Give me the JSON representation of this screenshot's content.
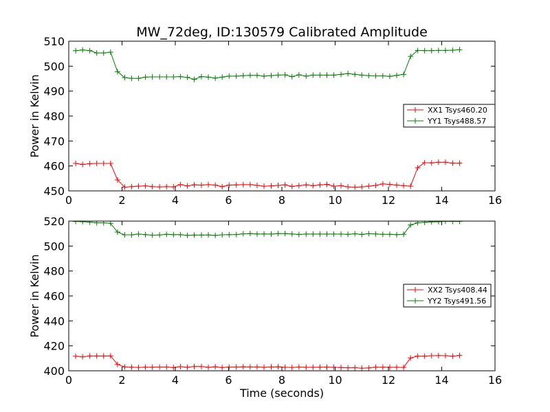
{
  "figure": {
    "title": "MW_72deg, ID:130579 Calibrated Amplitude",
    "xlabel": "Time (seconds)"
  },
  "chart_data": [
    {
      "type": "line",
      "title": "MW_72deg, ID:130579 Calibrated Amplitude",
      "xlabel": "",
      "ylabel": "Power in Kelvin",
      "xlim": [
        0,
        16
      ],
      "ylim": [
        450,
        510
      ],
      "xticks": [
        "0",
        "2",
        "4",
        "6",
        "8",
        "10",
        "12",
        "14",
        "16"
      ],
      "yticks": [
        "450",
        "460",
        "470",
        "480",
        "490",
        "500",
        "510"
      ],
      "grid": false,
      "legend_position": "right",
      "x": [
        0.26,
        0.52,
        0.79,
        1.05,
        1.31,
        1.57,
        1.83,
        2.1,
        2.36,
        2.62,
        2.88,
        3.14,
        3.41,
        3.67,
        3.93,
        4.19,
        4.45,
        4.71,
        4.98,
        5.24,
        5.5,
        5.76,
        6.02,
        6.29,
        6.55,
        6.81,
        7.07,
        7.33,
        7.6,
        7.86,
        8.12,
        8.38,
        8.64,
        8.91,
        9.17,
        9.43,
        9.69,
        9.95,
        10.22,
        10.48,
        10.74,
        11.0,
        11.26,
        11.52,
        11.79,
        12.05,
        12.31,
        12.57,
        12.83,
        13.1,
        13.36,
        13.62,
        13.88,
        14.14,
        14.41,
        14.67
      ],
      "series": [
        {
          "name": "XX1 Tsys460.20",
          "color": "#ff0000",
          "values": [
            461.0,
            460.6,
            460.9,
            461.0,
            461.0,
            461.0,
            454.4,
            451.5,
            451.7,
            451.9,
            452.0,
            451.7,
            451.6,
            451.7,
            451.6,
            452.5,
            452.0,
            452.4,
            452.3,
            452.5,
            452.3,
            451.7,
            452.3,
            452.4,
            452.5,
            452.5,
            452.2,
            451.9,
            452.0,
            452.2,
            452.4,
            451.8,
            452.1,
            452.4,
            452.1,
            452.4,
            452.6,
            451.9,
            452.1,
            451.6,
            451.5,
            451.6,
            451.9,
            452.2,
            452.8,
            452.6,
            452.3,
            452.1,
            451.9,
            459.3,
            461.3,
            461.2,
            461.5,
            461.5,
            461.1,
            461.1
          ]
        },
        {
          "name": "YY1 Tsys488.57",
          "color": "#008000",
          "values": [
            506.2,
            506.5,
            506.2,
            505.3,
            505.3,
            505.6,
            497.8,
            495.4,
            495.1,
            495.1,
            495.6,
            495.7,
            495.7,
            495.7,
            495.7,
            495.8,
            495.5,
            494.7,
            495.8,
            495.6,
            495.2,
            495.6,
            496.0,
            496.0,
            496.2,
            496.3,
            496.3,
            496.0,
            496.2,
            496.4,
            496.5,
            495.8,
            496.5,
            496.0,
            496.4,
            496.4,
            496.4,
            496.4,
            496.7,
            497.0,
            496.7,
            496.4,
            496.2,
            496.1,
            496.1,
            495.9,
            496.3,
            496.7,
            503.9,
            506.3,
            506.2,
            506.2,
            506.3,
            506.3,
            506.4,
            506.6
          ]
        }
      ]
    },
    {
      "type": "line",
      "title": "",
      "xlabel": "Time (seconds)",
      "ylabel": "Power in Kelvin",
      "xlim": [
        0,
        16
      ],
      "ylim": [
        400,
        520
      ],
      "xticks": [
        "0",
        "2",
        "4",
        "6",
        "8",
        "10",
        "12",
        "14",
        "16"
      ],
      "yticks": [
        "400",
        "420",
        "440",
        "460",
        "480",
        "500",
        "520"
      ],
      "grid": false,
      "legend_position": "right",
      "x": [
        0.26,
        0.52,
        0.79,
        1.05,
        1.31,
        1.57,
        1.83,
        2.1,
        2.36,
        2.62,
        2.88,
        3.14,
        3.41,
        3.67,
        3.93,
        4.19,
        4.45,
        4.71,
        4.98,
        5.24,
        5.5,
        5.76,
        6.02,
        6.29,
        6.55,
        6.81,
        7.07,
        7.33,
        7.6,
        7.86,
        8.12,
        8.38,
        8.64,
        8.91,
        9.17,
        9.43,
        9.69,
        9.95,
        10.22,
        10.48,
        10.74,
        11.0,
        11.26,
        11.52,
        11.79,
        12.05,
        12.31,
        12.57,
        12.83,
        13.1,
        13.36,
        13.62,
        13.88,
        14.14,
        14.41,
        14.67
      ],
      "series": [
        {
          "name": "XX2 Tsys408.44",
          "color": "#ff0000",
          "values": [
            411.7,
            411.2,
            411.9,
            411.9,
            411.9,
            412.0,
            405.1,
            403.1,
            402.9,
            402.7,
            402.9,
            402.9,
            403.0,
            403.0,
            402.6,
            403.3,
            402.8,
            403.4,
            403.4,
            402.8,
            403.2,
            402.6,
            403.0,
            403.0,
            403.2,
            403.1,
            403.1,
            402.8,
            403.1,
            403.2,
            402.8,
            402.7,
            403.0,
            402.8,
            402.8,
            402.9,
            402.9,
            402.8,
            402.6,
            402.4,
            402.5,
            402.1,
            402.3,
            402.9,
            402.9,
            402.8,
            402.8,
            402.7,
            410.3,
            411.8,
            411.8,
            412.1,
            412.2,
            412.1,
            411.7,
            412.3
          ]
        },
        {
          "name": "YY2 Tsys491.56",
          "color": "#008000",
          "values": [
            519.7,
            519.5,
            519.2,
            518.6,
            518.6,
            518.2,
            511.2,
            509.0,
            509.0,
            509.6,
            509.1,
            508.7,
            508.9,
            509.4,
            509.1,
            509.1,
            508.6,
            508.8,
            508.8,
            508.9,
            508.6,
            509.0,
            509.1,
            509.2,
            509.8,
            510.0,
            509.7,
            509.7,
            509.6,
            510.0,
            510.0,
            509.7,
            509.3,
            509.6,
            509.6,
            509.6,
            509.6,
            509.6,
            509.6,
            509.4,
            509.8,
            509.3,
            509.9,
            509.7,
            509.4,
            509.4,
            509.1,
            509.4,
            516.9,
            518.6,
            519.0,
            519.4,
            519.5,
            519.9,
            519.7,
            519.8
          ]
        }
      ]
    }
  ]
}
